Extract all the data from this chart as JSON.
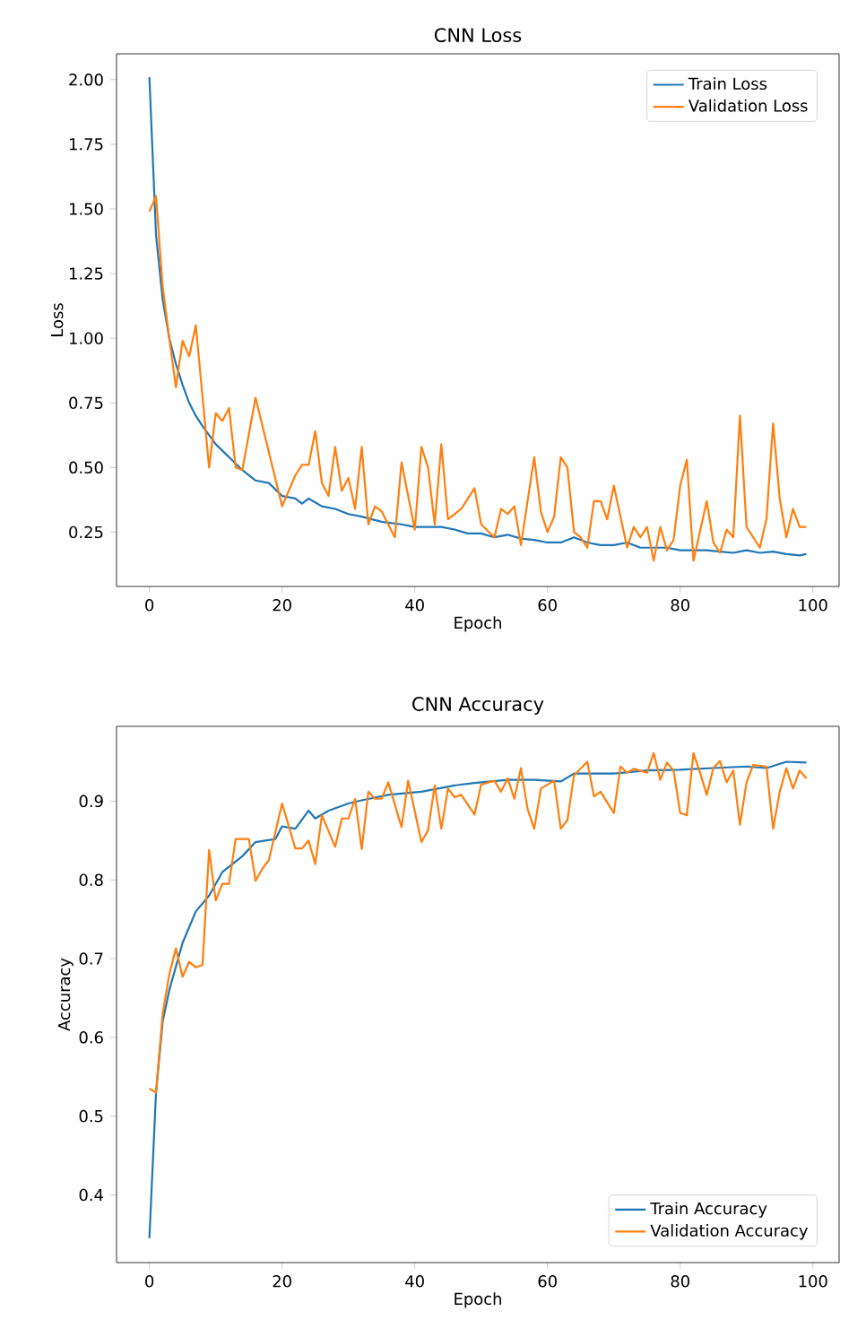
{
  "chart_data": [
    {
      "type": "line",
      "title": "CNN Loss",
      "xlabel": "Epoch",
      "ylabel": "Loss",
      "legend": "top right",
      "line_style": "solid",
      "marker": "none",
      "xlim": [
        -4.95,
        103.95
      ],
      "ylim": [
        0.04,
        2.1
      ],
      "xticks": [
        0,
        20,
        40,
        60,
        80,
        100
      ],
      "yticks": [
        {
          "value": 0.25,
          "label": "0.25"
        },
        {
          "value": 0.5,
          "label": "0.50"
        },
        {
          "value": 0.75,
          "label": "0.75"
        },
        {
          "value": 1,
          "label": "1.00"
        },
        {
          "value": 1.25,
          "label": "1.25"
        },
        {
          "value": 1.5,
          "label": "1.50"
        },
        {
          "value": 1.75,
          "label": "1.75"
        },
        {
          "value": 2,
          "label": "2.00"
        }
      ],
      "series": [
        {
          "name": "Train Loss",
          "color": "#1f77b4",
          "x": [
            0,
            1,
            2,
            3,
            4,
            5,
            6,
            7,
            8,
            10,
            12,
            14,
            16,
            18,
            20,
            22,
            23,
            24,
            26,
            28,
            30,
            32,
            35,
            38,
            40,
            44,
            46,
            48,
            50,
            52,
            54,
            56,
            58,
            60,
            62,
            64,
            66,
            68,
            70,
            72,
            74,
            76,
            78,
            80,
            82,
            84,
            86,
            88,
            90,
            92,
            94,
            96,
            98,
            99
          ],
          "values": [
            2.01,
            1.4,
            1.15,
            1.0,
            0.9,
            0.82,
            0.75,
            0.7,
            0.66,
            0.59,
            0.54,
            0.49,
            0.45,
            0.44,
            0.39,
            0.38,
            0.36,
            0.38,
            0.35,
            0.34,
            0.32,
            0.31,
            0.29,
            0.28,
            0.27,
            0.27,
            0.26,
            0.245,
            0.245,
            0.23,
            0.24,
            0.225,
            0.22,
            0.21,
            0.21,
            0.23,
            0.21,
            0.2,
            0.2,
            0.21,
            0.19,
            0.19,
            0.19,
            0.18,
            0.18,
            0.18,
            0.175,
            0.17,
            0.18,
            0.17,
            0.175,
            0.165,
            0.16,
            0.165
          ]
        },
        {
          "name": "Validation Loss",
          "color": "#ff7f0e",
          "x": [
            0,
            1,
            2,
            3,
            4,
            5,
            6,
            7,
            9,
            10,
            11,
            12,
            13,
            14,
            16,
            20,
            22,
            23,
            24,
            25,
            26,
            27,
            28,
            29,
            30,
            31,
            32,
            33,
            34,
            35,
            37,
            38,
            40,
            41,
            42,
            43,
            44,
            45,
            47,
            49,
            50,
            52,
            53,
            54,
            55,
            56,
            58,
            59,
            60,
            61,
            62,
            63,
            64,
            65,
            66,
            67,
            68,
            69,
            70,
            72,
            73,
            74,
            75,
            76,
            77,
            78,
            79,
            80,
            81,
            82,
            84,
            85,
            86,
            87,
            88,
            89,
            90,
            92,
            93,
            94,
            95,
            96,
            97,
            98,
            99
          ],
          "values": [
            1.49,
            1.55,
            1.2,
            1.0,
            0.81,
            0.99,
            0.93,
            1.05,
            0.5,
            0.71,
            0.68,
            0.73,
            0.5,
            0.49,
            0.77,
            0.35,
            0.47,
            0.51,
            0.51,
            0.64,
            0.44,
            0.39,
            0.58,
            0.41,
            0.46,
            0.34,
            0.58,
            0.28,
            0.35,
            0.33,
            0.23,
            0.52,
            0.26,
            0.58,
            0.5,
            0.28,
            0.59,
            0.3,
            0.34,
            0.42,
            0.28,
            0.23,
            0.34,
            0.32,
            0.35,
            0.2,
            0.54,
            0.33,
            0.25,
            0.31,
            0.54,
            0.5,
            0.25,
            0.23,
            0.19,
            0.37,
            0.37,
            0.3,
            0.43,
            0.19,
            0.27,
            0.23,
            0.27,
            0.14,
            0.27,
            0.18,
            0.22,
            0.43,
            0.53,
            0.14,
            0.37,
            0.21,
            0.17,
            0.26,
            0.23,
            0.7,
            0.27,
            0.19,
            0.3,
            0.67,
            0.38,
            0.23,
            0.34,
            0.27,
            0.27
          ]
        }
      ]
    },
    {
      "type": "line",
      "title": "CNN Accuracy",
      "xlabel": "Epoch",
      "ylabel": "Accuracy",
      "legend": "bottom right",
      "line_style": "solid",
      "marker": "none",
      "xlim": [
        -4.95,
        103.95
      ],
      "ylim": [
        0.314,
        0.995
      ],
      "xticks": [
        0,
        20,
        40,
        60,
        80,
        100
      ],
      "yticks": [
        0.4,
        0.5,
        0.6,
        0.7,
        0.8,
        0.9
      ],
      "series": [
        {
          "name": "Train Accuracy",
          "color": "#1f77b4",
          "x": [
            0,
            1,
            2,
            3,
            5,
            7,
            9,
            11,
            14,
            16,
            19,
            20,
            22,
            24,
            25,
            27,
            30,
            32,
            36,
            41,
            46,
            49,
            54,
            58,
            62,
            64,
            70,
            75,
            80,
            85,
            90,
            93,
            96,
            99
          ],
          "values": [
            0.345,
            0.53,
            0.62,
            0.66,
            0.72,
            0.76,
            0.78,
            0.81,
            0.83,
            0.848,
            0.852,
            0.868,
            0.865,
            0.888,
            0.878,
            0.888,
            0.897,
            0.901,
            0.908,
            0.912,
            0.92,
            0.923,
            0.927,
            0.927,
            0.925,
            0.935,
            0.935,
            0.939,
            0.94,
            0.942,
            0.944,
            0.942,
            0.95,
            0.949
          ]
        },
        {
          "name": "Validation Accuracy",
          "color": "#ff7f0e",
          "x": [
            0,
            1,
            2,
            3,
            4,
            5,
            6,
            7,
            8,
            9,
            10,
            11,
            12,
            13,
            15,
            16,
            17,
            18,
            20,
            22,
            23,
            24,
            25,
            26,
            28,
            29,
            30,
            31,
            32,
            33,
            34,
            35,
            36,
            38,
            39,
            41,
            42,
            43,
            44,
            45,
            46,
            47,
            49,
            50,
            52,
            53,
            54,
            55,
            56,
            57,
            58,
            59,
            61,
            62,
            63,
            64,
            66,
            67,
            68,
            70,
            71,
            72,
            73,
            75,
            76,
            77,
            78,
            79,
            80,
            81,
            82,
            83,
            84,
            85,
            86,
            87,
            88,
            89,
            90,
            91,
            93,
            94,
            95,
            96,
            97,
            98,
            99
          ],
          "values": [
            0.535,
            0.53,
            0.63,
            0.68,
            0.713,
            0.677,
            0.696,
            0.689,
            0.692,
            0.838,
            0.774,
            0.795,
            0.795,
            0.852,
            0.852,
            0.799,
            0.814,
            0.825,
            0.897,
            0.84,
            0.84,
            0.85,
            0.82,
            0.882,
            0.842,
            0.878,
            0.878,
            0.903,
            0.839,
            0.912,
            0.903,
            0.903,
            0.924,
            0.867,
            0.926,
            0.848,
            0.863,
            0.92,
            0.865,
            0.916,
            0.905,
            0.908,
            0.883,
            0.921,
            0.926,
            0.912,
            0.929,
            0.903,
            0.942,
            0.89,
            0.865,
            0.916,
            0.926,
            0.865,
            0.876,
            0.933,
            0.95,
            0.906,
            0.912,
            0.885,
            0.944,
            0.936,
            0.941,
            0.936,
            0.961,
            0.927,
            0.949,
            0.939,
            0.885,
            0.882,
            0.961,
            0.936,
            0.908,
            0.942,
            0.951,
            0.924,
            0.939,
            0.87,
            0.924,
            0.946,
            0.944,
            0.865,
            0.912,
            0.942,
            0.916,
            0.939,
            0.929
          ]
        }
      ]
    }
  ]
}
